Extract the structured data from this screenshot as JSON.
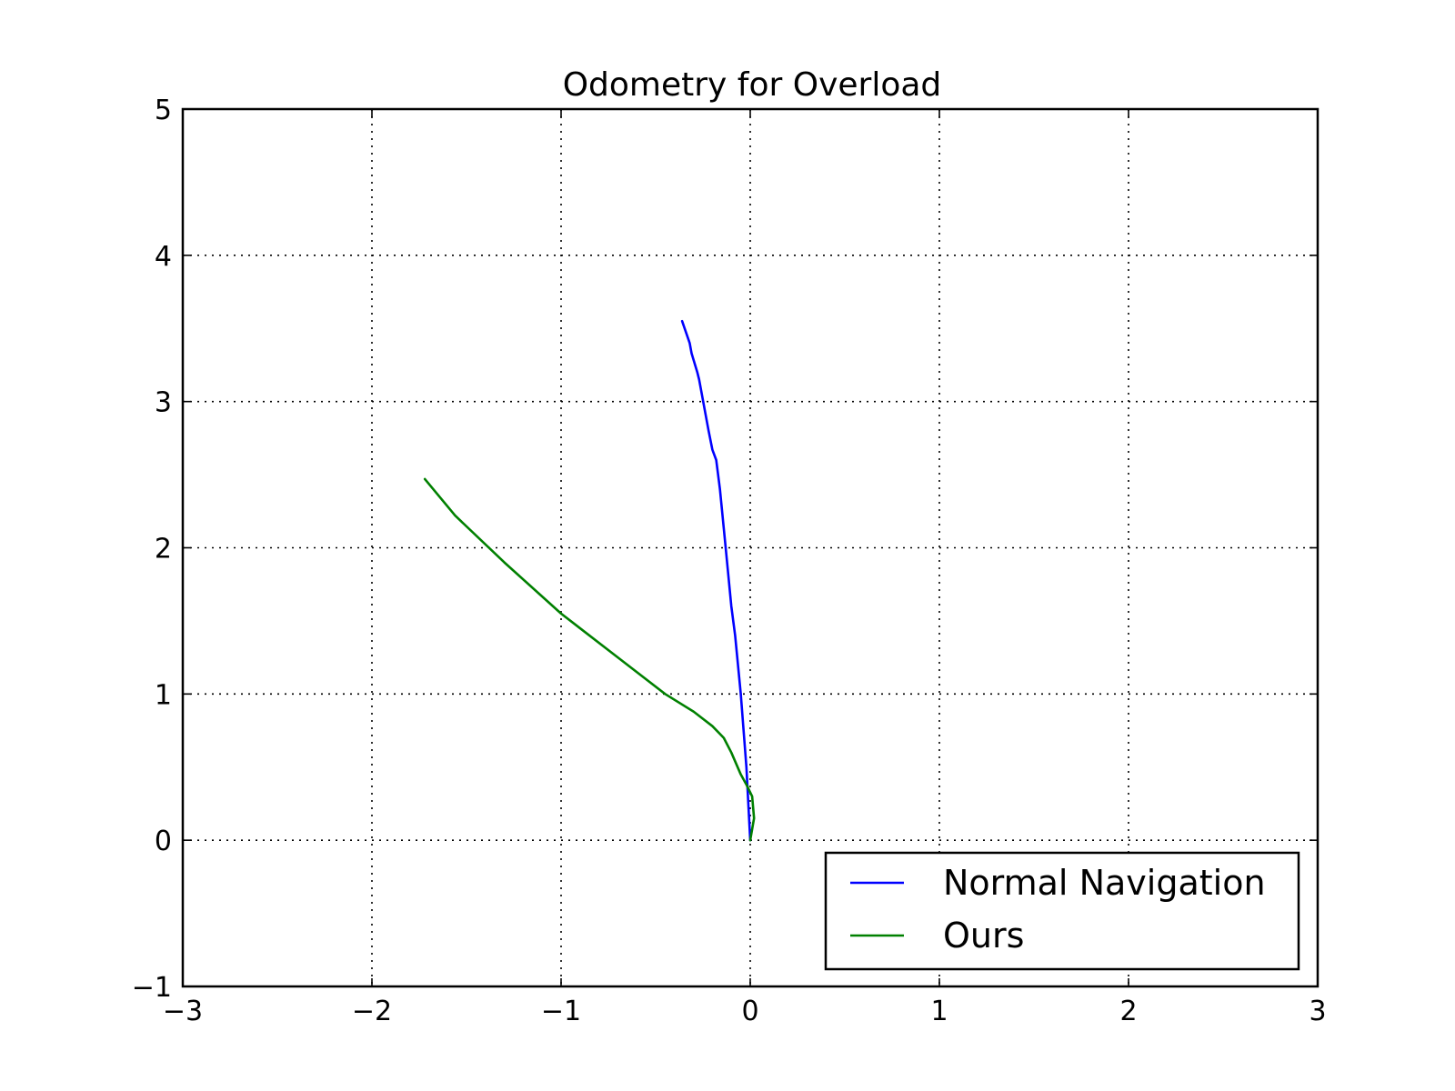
{
  "chart_data": {
    "type": "line",
    "title": "Odometry for Overload",
    "xlabel": "",
    "ylabel": "",
    "xlim": [
      -3,
      3
    ],
    "ylim": [
      -1,
      5
    ],
    "xticks": [
      -3,
      -2,
      -1,
      0,
      1,
      2,
      3
    ],
    "yticks": [
      -1,
      0,
      1,
      2,
      3,
      4,
      5
    ],
    "xtick_labels": [
      "−3",
      "−2",
      "−1",
      "0",
      "1",
      "2",
      "3"
    ],
    "ytick_labels": [
      "−1",
      "0",
      "1",
      "2",
      "3",
      "4",
      "5"
    ],
    "grid": true,
    "legend_position": "lower-right",
    "series": [
      {
        "name": "Normal Navigation",
        "color": "#0000ff",
        "x": [
          0.0,
          -0.02,
          -0.05,
          -0.08,
          -0.1,
          -0.13,
          -0.16,
          -0.18,
          -0.2,
          -0.22,
          -0.27,
          -0.28,
          -0.31,
          -0.32,
          -0.36
        ],
        "y": [
          0.0,
          0.5,
          1.0,
          1.4,
          1.6,
          2.0,
          2.4,
          2.6,
          2.67,
          2.8,
          3.15,
          3.2,
          3.33,
          3.4,
          3.55
        ]
      },
      {
        "name": "Ours",
        "color": "#008000",
        "x": [
          0.0,
          0.02,
          0.01,
          -0.02,
          -0.05,
          -0.1,
          -0.14,
          -0.2,
          -0.3,
          -0.45,
          -0.7,
          -1.0,
          -1.3,
          -1.56,
          -1.72
        ],
        "y": [
          0.0,
          0.15,
          0.3,
          0.38,
          0.45,
          0.6,
          0.7,
          0.78,
          0.88,
          1.0,
          1.25,
          1.55,
          1.9,
          2.22,
          2.47
        ]
      }
    ]
  }
}
